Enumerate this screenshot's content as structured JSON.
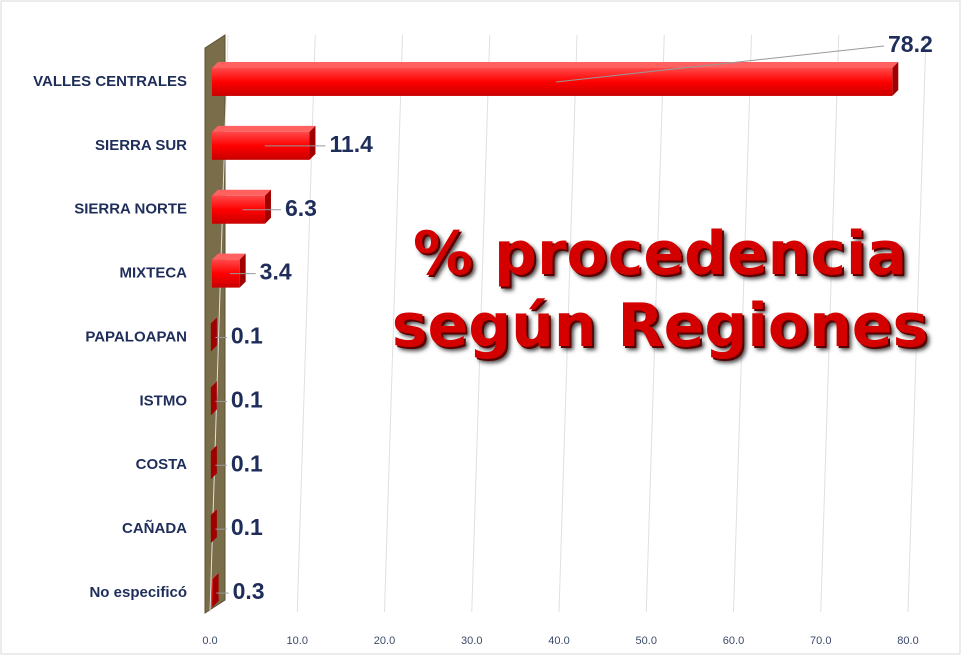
{
  "chart_data": {
    "type": "bar",
    "orientation": "horizontal",
    "title": "% procedencia según Regiones",
    "categories": [
      "VALLES CENTRALES",
      "SIERRA SUR",
      "SIERRA NORTE",
      "MIXTECA",
      "PAPALOAPAN",
      "ISTMO",
      "COSTA",
      "CAÑADA",
      "No especificó"
    ],
    "values": [
      78.2,
      11.4,
      6.3,
      3.4,
      0.1,
      0.1,
      0.1,
      0.1,
      0.3
    ],
    "color": "#ff0000",
    "xlim": [
      0,
      80
    ],
    "xticks": [
      {
        "value": 0,
        "label": "0.0"
      },
      {
        "value": 10,
        "label": "10.0"
      },
      {
        "value": 20,
        "label": "20.0"
      },
      {
        "value": 30,
        "label": "30.0"
      },
      {
        "value": 40,
        "label": "40.0"
      },
      {
        "value": 50,
        "label": "50.0"
      },
      {
        "value": 60,
        "label": "60.0"
      },
      {
        "value": 70,
        "label": "70.0"
      },
      {
        "value": 80,
        "label": "80.0"
      }
    ],
    "grid": true
  }
}
